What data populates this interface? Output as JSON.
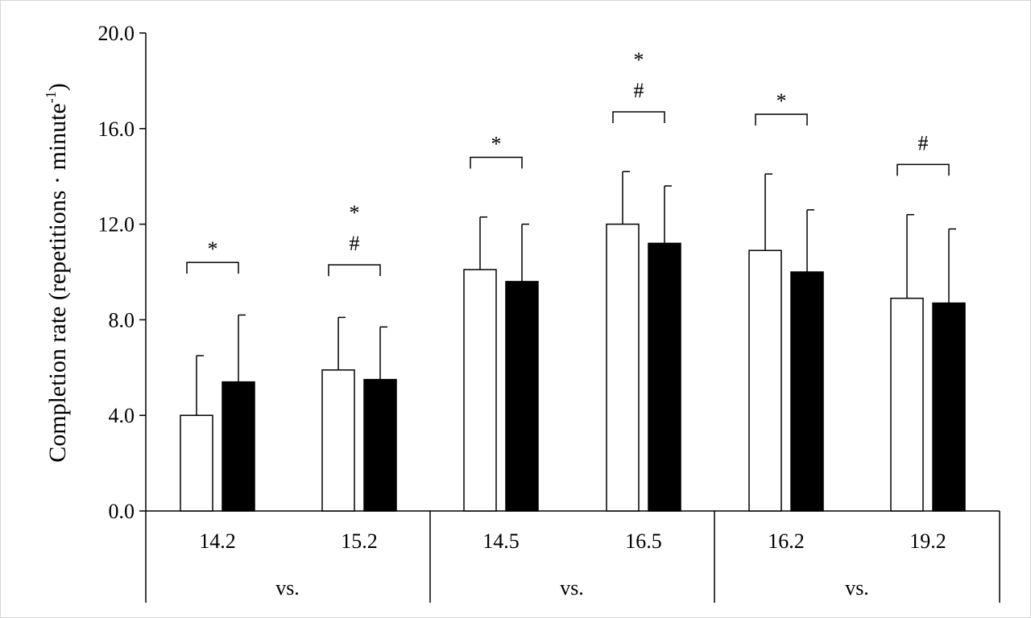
{
  "chart_data": {
    "type": "bar",
    "title": "",
    "ylabel": "Completion rate (repetitions · minute",
    "ylabel_sup": "-1",
    "ylabel_close": ")",
    "ylim": [
      0,
      20
    ],
    "yticks": [
      0,
      4,
      8,
      12,
      16,
      20
    ],
    "ytick_labels": [
      "0.0",
      "4.0",
      "8.0",
      "12.0",
      "16.0",
      "20.0"
    ],
    "categories": [
      "14.2",
      "15.2",
      "14.5",
      "16.5",
      "16.2",
      "19.2"
    ],
    "groups": [
      {
        "label": "vs.",
        "categories": [
          "14.2",
          "15.2"
        ]
      },
      {
        "label": "vs.",
        "categories": [
          "14.5",
          "16.5"
        ]
      },
      {
        "label": "vs.",
        "categories": [
          "16.2",
          "19.2"
        ]
      }
    ],
    "series": [
      {
        "fill": "white",
        "values": [
          4.0,
          5.9,
          10.1,
          12.0,
          10.9,
          8.9
        ],
        "errors": [
          2.5,
          2.2,
          2.2,
          2.2,
          3.2,
          3.5
        ]
      },
      {
        "fill": "black",
        "values": [
          5.4,
          5.5,
          9.6,
          11.2,
          10.0,
          8.7
        ],
        "errors": [
          2.8,
          2.2,
          2.4,
          2.4,
          2.6,
          3.1
        ]
      }
    ],
    "significance": [
      {
        "category": "14.2",
        "bracket_y": 10.4,
        "labels": [
          "*"
        ]
      },
      {
        "category": "15.2",
        "bracket_y": 10.3,
        "labels": [
          "*",
          "#"
        ]
      },
      {
        "category": "14.5",
        "bracket_y": 14.8,
        "labels": [
          "*"
        ]
      },
      {
        "category": "16.5",
        "bracket_y": 16.7,
        "labels": [
          "*",
          "#"
        ]
      },
      {
        "category": "16.2",
        "bracket_y": 16.6,
        "labels": [
          "*"
        ]
      },
      {
        "category": "19.2",
        "bracket_y": 14.5,
        "labels": [
          "#"
        ]
      }
    ],
    "colors": {
      "axis": "#000000",
      "white_bar": "#ffffff",
      "black_bar": "#000000"
    },
    "grid": false
  }
}
